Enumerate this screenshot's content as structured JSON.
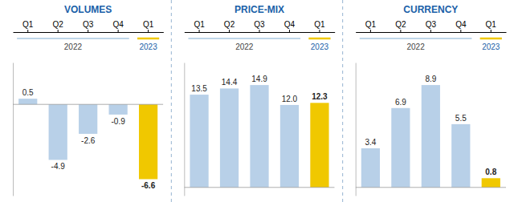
{
  "chart_data": [
    {
      "type": "bar",
      "title": "VOLUMES",
      "categories": [
        "Q1",
        "Q2",
        "Q3",
        "Q4",
        "Q1"
      ],
      "values": [
        0.5,
        -4.9,
        -2.6,
        -0.9,
        -6.6
      ],
      "colors": [
        "#b8d0e8",
        "#b8d0e8",
        "#b8d0e8",
        "#b8d0e8",
        "#f0c800"
      ],
      "ylim": [
        -8.052,
        3.695
      ],
      "annotations": [
        "2022",
        "2023"
      ],
      "data_labels": true,
      "tick_labels": "x",
      "grid": false
    },
    {
      "type": "bar",
      "title": "PRICE-MIX",
      "categories": [
        "Q1",
        "Q2",
        "Q3",
        "Q4",
        "Q1"
      ],
      "values": [
        13.5,
        14.4,
        14.9,
        12.0,
        12.3
      ],
      "value_labels": [
        "13.5",
        "14.4",
        "14.9",
        "12.0",
        "12.3"
      ],
      "colors": [
        "#b8d0e8",
        "#b8d0e8",
        "#b8d0e8",
        "#b8d0e8",
        "#f0c800"
      ],
      "ylim": [
        -1.192,
        18.178
      ],
      "annotations": [
        "2022",
        "2023"
      ],
      "data_labels": true,
      "tick_labels": "x",
      "grid": false
    },
    {
      "type": "bar",
      "title": "CURRENCY",
      "categories": [
        "Q1",
        "Q2",
        "Q3",
        "Q4",
        "Q1"
      ],
      "values": [
        3.4,
        6.9,
        8.9,
        5.5,
        0.8
      ],
      "colors": [
        "#b8d0e8",
        "#b8d0e8",
        "#b8d0e8",
        "#b8d0e8",
        "#f0c800"
      ],
      "ylim": [
        -0.712,
        10.858
      ],
      "annotations": [
        "2022",
        "2023"
      ],
      "data_labels": true,
      "tick_labels": "x",
      "grid": false
    }
  ]
}
